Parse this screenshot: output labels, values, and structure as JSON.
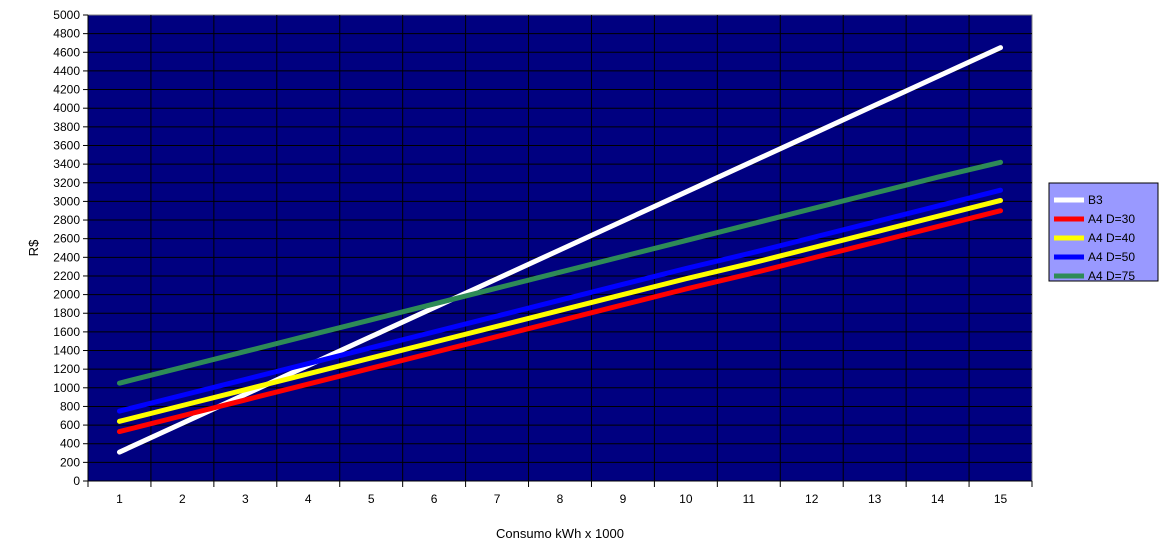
{
  "chart_data": {
    "type": "line",
    "title": "",
    "xlabel": "Consumo kWh x 1000",
    "ylabel": "R$",
    "x": [
      1,
      2,
      3,
      4,
      5,
      6,
      7,
      8,
      9,
      10,
      11,
      12,
      13,
      14,
      15
    ],
    "xlim": [
      0.5,
      15.5
    ],
    "ylim": [
      0,
      5000
    ],
    "y_ticks": [
      0,
      200,
      400,
      600,
      800,
      1000,
      1200,
      1400,
      1600,
      1800,
      2000,
      2200,
      2400,
      2600,
      2800,
      3000,
      3200,
      3400,
      3600,
      3800,
      4000,
      4200,
      4400,
      4600,
      4800,
      5000
    ],
    "grid": true,
    "legend_position": "right",
    "plot_background": "#000080",
    "grid_color": "#000000",
    "series": [
      {
        "name": "B3",
        "color": "#ffffff",
        "values": [
          310,
          620,
          930,
          1240,
          1550,
          1860,
          2170,
          2480,
          2790,
          3100,
          3410,
          3720,
          4030,
          4340,
          4650
        ]
      },
      {
        "name": "A4 D=30",
        "color": "#ff0000",
        "values": [
          530,
          700,
          870,
          1040,
          1210,
          1380,
          1550,
          1720,
          1890,
          2060,
          2220,
          2390,
          2560,
          2730,
          2900
        ]
      },
      {
        "name": "A4 D=40",
        "color": "#ffff00",
        "values": [
          640,
          810,
          980,
          1150,
          1320,
          1490,
          1660,
          1830,
          2000,
          2170,
          2330,
          2500,
          2670,
          2840,
          3010
        ]
      },
      {
        "name": "A4 D=50",
        "color": "#0000ff",
        "values": [
          750,
          920,
          1090,
          1260,
          1430,
          1600,
          1770,
          1940,
          2110,
          2280,
          2440,
          2610,
          2780,
          2950,
          3120
        ]
      },
      {
        "name": "A4 D=75",
        "color": "#2e8b57",
        "values": [
          1050,
          1220,
          1390,
          1560,
          1730,
          1900,
          2070,
          2240,
          2410,
          2580,
          2750,
          2920,
          3090,
          3260,
          3420
        ]
      }
    ]
  }
}
